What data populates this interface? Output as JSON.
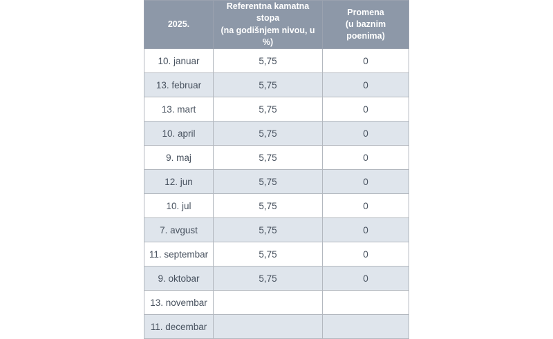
{
  "chart_data": {
    "type": "table",
    "title": "Referentna kamatna stopa 2025.",
    "columns": [
      {
        "name": "year",
        "label_lines": [
          "2025."
        ]
      },
      {
        "name": "reference_rate",
        "label_lines": [
          "Referentna kamatna",
          "stopa",
          "(na godišnjem nivou, u %)"
        ]
      },
      {
        "name": "change",
        "label_lines": [
          "Promena",
          "(u baznim poenima)"
        ]
      }
    ],
    "rows": [
      {
        "date": "10. januar",
        "rate": "5,75",
        "change": "0"
      },
      {
        "date": "13. februar",
        "rate": "5,75",
        "change": "0"
      },
      {
        "date": "13. mart",
        "rate": "5,75",
        "change": "0"
      },
      {
        "date": "10. april",
        "rate": "5,75",
        "change": "0"
      },
      {
        "date": "9. maj",
        "rate": "5,75",
        "change": "0"
      },
      {
        "date": "12. jun",
        "rate": "5,75",
        "change": "0"
      },
      {
        "date": "10. jul",
        "rate": "5,75",
        "change": "0"
      },
      {
        "date": "7. avgust",
        "rate": "5,75",
        "change": "0"
      },
      {
        "date": "11. septembar",
        "rate": "5,75",
        "change": "0"
      },
      {
        "date": "9. oktobar",
        "rate": "5,75",
        "change": "0"
      },
      {
        "date": "13. novembar",
        "rate": "",
        "change": ""
      },
      {
        "date": "11. decembar",
        "rate": "",
        "change": ""
      }
    ]
  },
  "colors": {
    "header_background": "#8d98a8",
    "header_text": "#ffffff",
    "row_alternate_background": "#dfe5ec",
    "row_background": "#ffffff",
    "body_text": "#47515e",
    "border": "#b3b8bf"
  }
}
